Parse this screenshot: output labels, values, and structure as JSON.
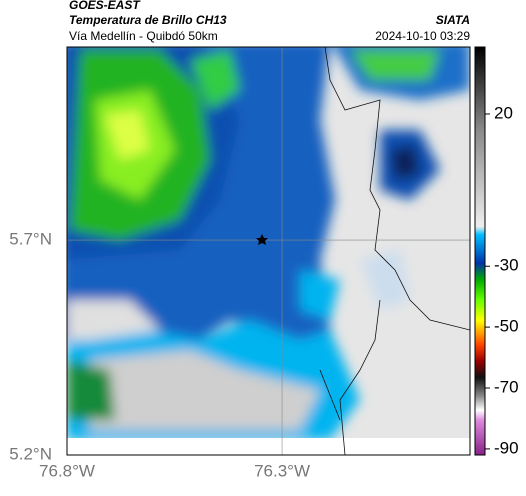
{
  "header": {
    "source": "GOES-EAST",
    "title": "Temperatura de Brillo CH13",
    "subtitle": "Vía Medellín - Quibdó 50km",
    "agency": "SIATA",
    "timestamp": "2024-10-10 03:29"
  },
  "map": {
    "xlim": [
      -76.8,
      -75.863
    ],
    "ylim": [
      5.2,
      6.149
    ],
    "xticks": [
      {
        "value": -76.8,
        "label": "76.8°W"
      },
      {
        "value": -76.3,
        "label": "76.3°W"
      }
    ],
    "yticks": [
      {
        "value": 5.2,
        "label": "5.2°N"
      },
      {
        "value": 5.7,
        "label": "5.7°N"
      }
    ]
  },
  "colorbar": {
    "lim": [
      42,
      -92
    ],
    "ticks": [
      20,
      -30,
      -50,
      -70,
      -90
    ]
  }
}
